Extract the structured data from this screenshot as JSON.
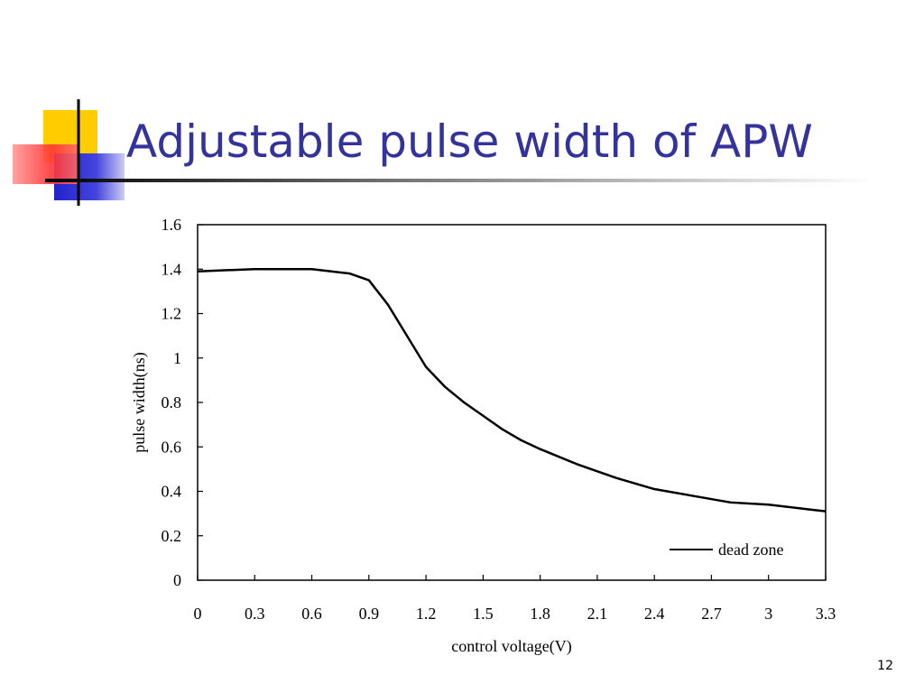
{
  "page_number": "12",
  "chart_data": {
    "type": "line",
    "title": "Adjustable pulse width of APW",
    "xlabel": "control voltage(V)",
    "ylabel": "pulse width(ns)",
    "x": [
      0,
      0.3,
      0.6,
      0.8,
      0.9,
      1.0,
      1.1,
      1.2,
      1.3,
      1.4,
      1.5,
      1.6,
      1.7,
      1.8,
      2.0,
      2.2,
      2.4,
      2.6,
      2.8,
      3.0,
      3.2,
      3.3
    ],
    "series": [
      {
        "name": "dead zone",
        "color": "#000000",
        "values": [
          1.39,
          1.4,
          1.4,
          1.38,
          1.35,
          1.24,
          1.1,
          0.96,
          0.87,
          0.8,
          0.74,
          0.68,
          0.63,
          0.59,
          0.52,
          0.46,
          0.41,
          0.38,
          0.35,
          0.34,
          0.32,
          0.31
        ]
      }
    ],
    "xlim": [
      0,
      3.3
    ],
    "xticks": [
      0,
      0.3,
      0.6,
      0.9,
      1.2,
      1.5,
      1.8,
      2.1,
      2.4,
      2.7,
      3,
      3.3
    ],
    "ylim": [
      0,
      1.6
    ],
    "yticks": [
      0,
      0.2,
      0.4,
      0.6,
      0.8,
      1,
      1.2,
      1.4,
      1.6
    ],
    "legend": "lower right",
    "grid": false
  }
}
